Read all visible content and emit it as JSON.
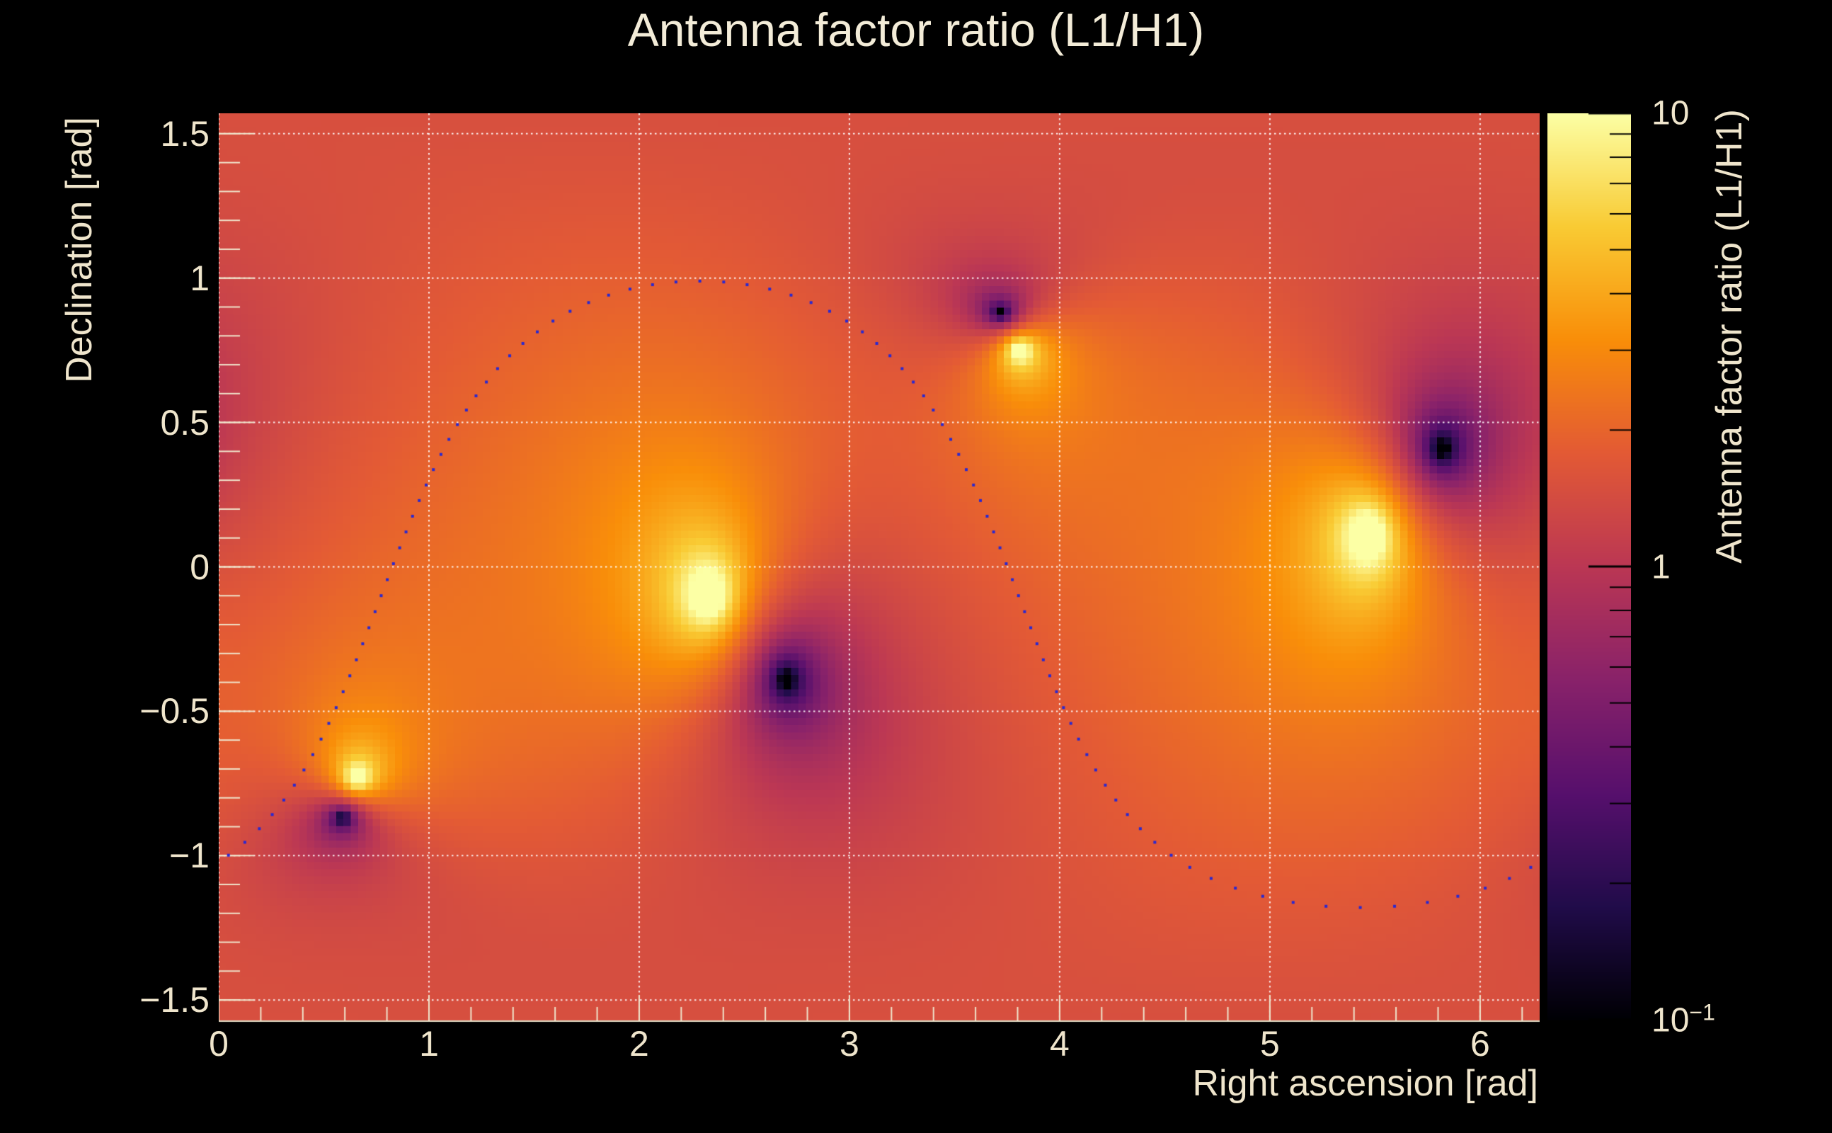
{
  "chart_data": {
    "type": "heatmap",
    "title": "Antenna factor ratio (L1/H1)",
    "xlabel": "Right ascension [rad]",
    "ylabel": "Declination [rad]",
    "zlabel": "Antenna factor ratio (L1/H1)",
    "x_range": [
      0,
      6.283185
    ],
    "y_range": [
      -1.570796,
      1.570796
    ],
    "z_range": [
      0.1,
      10
    ],
    "z_scale": "log",
    "grid_on": true,
    "x_major_ticks": [
      {
        "v": 0,
        "label": "0"
      },
      {
        "v": 1,
        "label": "1"
      },
      {
        "v": 2,
        "label": "2"
      },
      {
        "v": 3,
        "label": "3"
      },
      {
        "v": 4,
        "label": "4"
      },
      {
        "v": 5,
        "label": "5"
      },
      {
        "v": 6,
        "label": "6"
      }
    ],
    "x_minor_step": 0.2,
    "y_major_ticks": [
      {
        "v": 1.5,
        "label": "1.5"
      },
      {
        "v": 1.0,
        "label": "1"
      },
      {
        "v": 0.5,
        "label": "0.5"
      },
      {
        "v": 0.0,
        "label": "0"
      },
      {
        "v": -0.5,
        "label": "−0.5"
      },
      {
        "v": -1.0,
        "label": "−1"
      },
      {
        "v": -1.5,
        "label": "−1.5"
      }
    ],
    "y_minor_step": 0.1,
    "colorbar_ticks": [
      {
        "v": 10,
        "base": "10",
        "sup": ""
      },
      {
        "v": 1,
        "base": "1",
        "sup": ""
      },
      {
        "v": 0.1,
        "base": "10",
        "sup": "−1"
      }
    ],
    "heatmap": {
      "bins": [
        180,
        126
      ],
      "background_ratio": 1.85,
      "bright_spots_h1_nulls": [
        [
          2.33,
          -0.1
        ],
        [
          5.47,
          0.11
        ],
        [
          3.81,
          0.75
        ],
        [
          0.66,
          -0.73
        ]
      ],
      "dark_spots_l1_nulls": [
        [
          2.7,
          -0.39
        ],
        [
          5.82,
          0.41
        ],
        [
          3.72,
          0.88
        ],
        [
          0.59,
          -0.87
        ]
      ],
      "colormap_stops": [
        [
          0.0,
          0,
          0,
          4
        ],
        [
          0.125,
          33,
          12,
          74
        ],
        [
          0.25,
          87,
          16,
          109
        ],
        [
          0.375,
          137,
          34,
          106
        ],
        [
          0.5,
          187,
          55,
          84
        ],
        [
          0.625,
          227,
          90,
          53
        ],
        [
          0.75,
          249,
          142,
          9
        ],
        [
          0.875,
          249,
          203,
          52
        ],
        [
          1.0,
          252,
          255,
          165
        ]
      ]
    },
    "track": {
      "pole_ra": 5.43,
      "pole_dec": 0.486,
      "cos_angle": -0.095,
      "n_points": 100,
      "marker_color": "#2828d2",
      "marker_size": 4
    },
    "colors": {
      "background": "#000000",
      "text": "#efe5cc",
      "axis": "#efe5cc",
      "grid": "#ffffff",
      "colorbar_tick": "#000000"
    }
  }
}
